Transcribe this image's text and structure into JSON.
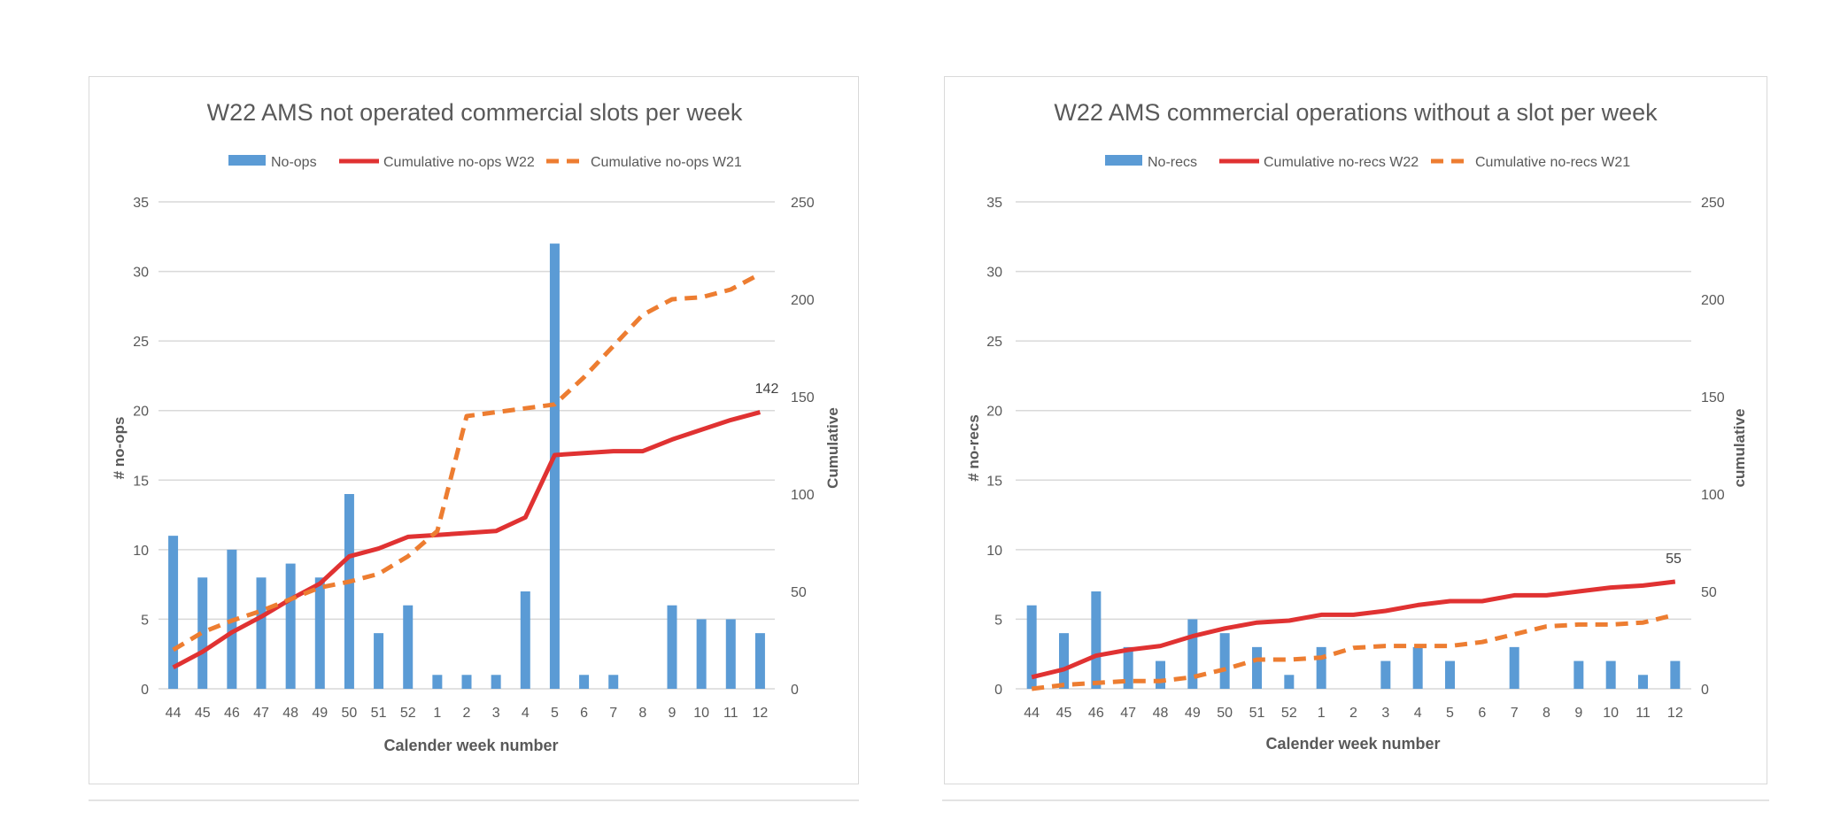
{
  "colors": {
    "bar": "#5b9bd5",
    "line_w22": "#e03232",
    "line_w21": "#ed7d31",
    "grid": "#d9d9d9",
    "text": "#595959"
  },
  "chart_data": [
    {
      "type": "bar",
      "title": "W22 AMS not operated commercial slots per week",
      "xlabel": "Calender week number",
      "ylabel": "# no-ops",
      "y2label": "Cumulative",
      "ylim": [
        0,
        35
      ],
      "y2lim": [
        0,
        250
      ],
      "yticks": [
        "0",
        "5",
        "10",
        "15",
        "20",
        "25",
        "30",
        "35"
      ],
      "y2ticks": [
        "0",
        "50",
        "100",
        "150",
        "200",
        "250"
      ],
      "categories": [
        "44",
        "45",
        "46",
        "47",
        "48",
        "49",
        "50",
        "51",
        "52",
        "1",
        "2",
        "3",
        "4",
        "5",
        "6",
        "7",
        "8",
        "9",
        "10",
        "11",
        "12"
      ],
      "legend": [
        "No-ops",
        "Cumulative no-ops W22",
        "Cumulative no-ops W21"
      ],
      "end_label": "142",
      "series": [
        {
          "name": "No-ops",
          "kind": "bar",
          "axis": "left",
          "values": [
            11,
            8,
            10,
            8,
            9,
            8,
            14,
            4,
            6,
            1,
            1,
            1,
            7,
            32,
            1,
            1,
            0,
            6,
            5,
            5,
            4
          ]
        },
        {
          "name": "Cumulative no-ops W22",
          "kind": "line",
          "axis": "right",
          "values": [
            11,
            19,
            29,
            37,
            46,
            54,
            68,
            72,
            78,
            79,
            80,
            81,
            88,
            120,
            121,
            122,
            122,
            128,
            133,
            138,
            142
          ]
        },
        {
          "name": "Cumulative no-ops W21",
          "kind": "line-dashed",
          "axis": "right",
          "values": [
            20,
            29,
            35,
            40,
            46,
            52,
            55,
            59,
            68,
            81,
            140,
            142,
            144,
            146,
            160,
            176,
            192,
            200,
            201,
            205,
            213
          ]
        }
      ]
    },
    {
      "type": "bar",
      "title": "W22 AMS commercial operations without a slot per week",
      "xlabel": "Calender week number",
      "ylabel": "# no-recs",
      "y2label": "cumulative",
      "ylim": [
        0,
        35
      ],
      "y2lim": [
        0,
        250
      ],
      "yticks": [
        "0",
        "5",
        "10",
        "15",
        "20",
        "25",
        "30",
        "35"
      ],
      "y2ticks": [
        "0",
        "50",
        "100",
        "150",
        "200",
        "250"
      ],
      "categories": [
        "44",
        "45",
        "46",
        "47",
        "48",
        "49",
        "50",
        "51",
        "52",
        "1",
        "2",
        "3",
        "4",
        "5",
        "6",
        "7",
        "8",
        "9",
        "10",
        "11",
        "12"
      ],
      "legend": [
        "No-recs",
        "Cumulative no-recs W22",
        "Cumulative no-recs W21"
      ],
      "end_label": "55",
      "series": [
        {
          "name": "No-recs",
          "kind": "bar",
          "axis": "left",
          "values": [
            6,
            4,
            7,
            3,
            2,
            5,
            4,
            3,
            1,
            3,
            0,
            2,
            3,
            2,
            0,
            3,
            0,
            2,
            2,
            1,
            2
          ]
        },
        {
          "name": "Cumulative no-recs W22",
          "kind": "line",
          "axis": "right",
          "values": [
            6,
            10,
            17,
            20,
            22,
            27,
            31,
            34,
            35,
            38,
            38,
            40,
            43,
            45,
            45,
            48,
            48,
            50,
            52,
            53,
            55
          ]
        },
        {
          "name": "Cumulative no-recs W21",
          "kind": "line-dashed",
          "axis": "right",
          "values": [
            0,
            2,
            3,
            4,
            4,
            6,
            10,
            15,
            15,
            16,
            21,
            22,
            22,
            22,
            24,
            28,
            32,
            33,
            33,
            34,
            38
          ]
        }
      ]
    }
  ]
}
